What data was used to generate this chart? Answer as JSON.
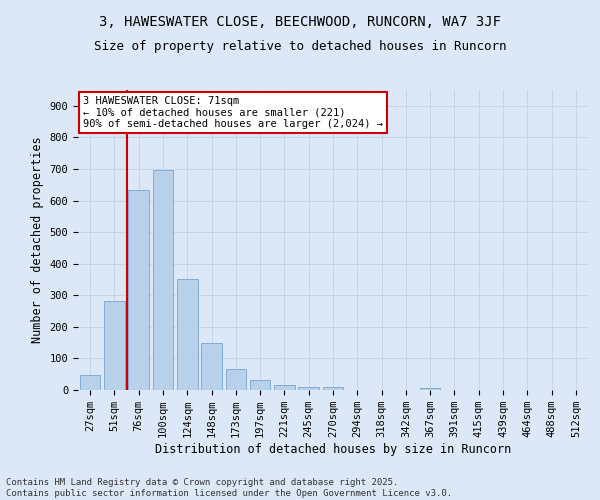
{
  "title": "3, HAWESWATER CLOSE, BEECHWOOD, RUNCORN, WA7 3JF",
  "subtitle": "Size of property relative to detached houses in Runcorn",
  "xlabel": "Distribution of detached houses by size in Runcorn",
  "ylabel": "Number of detached properties",
  "bar_labels": [
    "27sqm",
    "51sqm",
    "76sqm",
    "100sqm",
    "124sqm",
    "148sqm",
    "173sqm",
    "197sqm",
    "221sqm",
    "245sqm",
    "270sqm",
    "294sqm",
    "318sqm",
    "342sqm",
    "367sqm",
    "391sqm",
    "415sqm",
    "439sqm",
    "464sqm",
    "488sqm",
    "512sqm"
  ],
  "bar_values": [
    46,
    283,
    634,
    697,
    351,
    148,
    68,
    31,
    15,
    10,
    8,
    0,
    0,
    0,
    7,
    0,
    0,
    0,
    0,
    0,
    0
  ],
  "bar_color": "#b8d0ea",
  "bar_edge_color": "#6699cc",
  "grid_color": "#c8d4e8",
  "background_color": "#dce8f8",
  "vline_color": "#cc0000",
  "vline_pos": 1.5,
  "annotation_text": "3 HAWESWATER CLOSE: 71sqm\n← 10% of detached houses are smaller (221)\n90% of semi-detached houses are larger (2,024) →",
  "annotation_box_color": "#ffffff",
  "annotation_border_color": "#cc0000",
  "footer_text": "Contains HM Land Registry data © Crown copyright and database right 2025.\nContains public sector information licensed under the Open Government Licence v3.0.",
  "ylim": [
    0,
    950
  ],
  "yticks": [
    0,
    100,
    200,
    300,
    400,
    500,
    600,
    700,
    800,
    900
  ],
  "title_fontsize": 10,
  "subtitle_fontsize": 9,
  "axis_label_fontsize": 8.5,
  "tick_fontsize": 7.5,
  "footer_fontsize": 6.5,
  "annotation_fontsize": 7.5
}
